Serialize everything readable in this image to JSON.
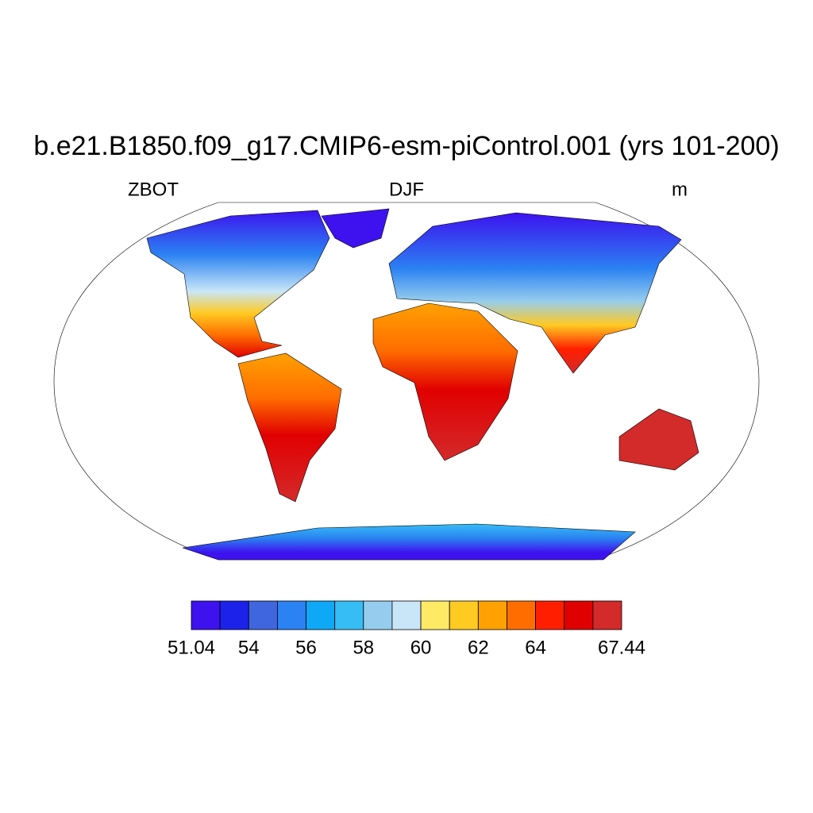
{
  "header": {
    "title": "b.e21.B1850.f09_g17.CMIP6-esm-piControl.001 (yrs 101-200)",
    "left": "ZBOT",
    "center": "DJF",
    "right": "m"
  },
  "colorbar": {
    "colors": [
      "#3d12ef",
      "#1c22ea",
      "#3f66de",
      "#2b82f2",
      "#0fa8f6",
      "#36bdf5",
      "#96cdee",
      "#c8e6f8",
      "#ffea66",
      "#ffca22",
      "#ffa102",
      "#ff6d00",
      "#ff1f00",
      "#e10001",
      "#d32a2a"
    ],
    "labels": [
      51.04,
      54,
      56,
      58,
      60,
      62,
      64,
      67.44
    ]
  }
}
